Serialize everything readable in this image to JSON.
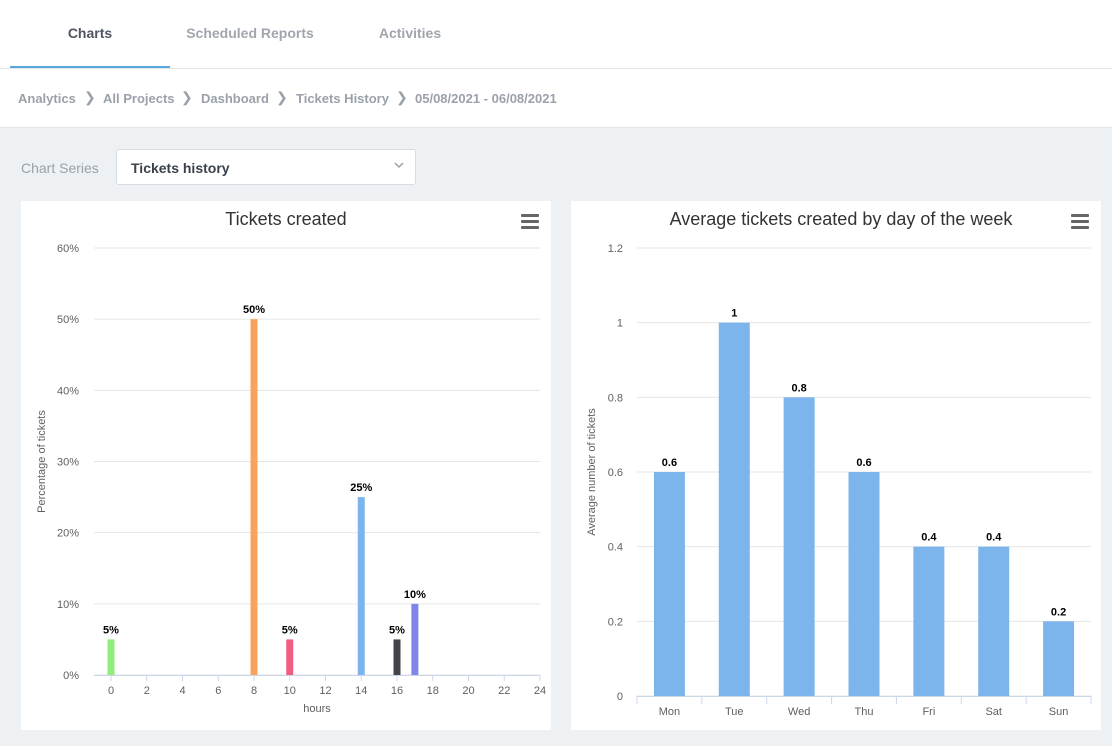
{
  "tabs": [
    {
      "label": "Charts",
      "active": true
    },
    {
      "label": "Scheduled Reports",
      "active": false
    },
    {
      "label": "Activities",
      "active": false
    }
  ],
  "breadcrumb": [
    "Analytics",
    "All Projects",
    "Dashboard",
    "Tickets History",
    "05/08/2021 - 06/08/2021"
  ],
  "series_selector": {
    "label": "Chart Series",
    "value": "Tickets history"
  },
  "colors": {
    "accent": "#5aa9dd",
    "bar_blue": "#7cb5ec"
  },
  "chart_data": [
    {
      "type": "bar",
      "title": "Tickets created",
      "xlabel": "hours",
      "ylabel": "Percentage of tickets",
      "x_ticks": [
        "0",
        "2",
        "4",
        "6",
        "8",
        "10",
        "12",
        "14",
        "16",
        "18",
        "20",
        "22",
        "24"
      ],
      "xlim": [
        0,
        24
      ],
      "y_ticks": [
        "0%",
        "10%",
        "20%",
        "30%",
        "40%",
        "50%",
        "60%"
      ],
      "ylim": [
        0,
        60
      ],
      "grid": true,
      "points": [
        {
          "x": 0,
          "y": 5,
          "label": "5%",
          "color": "#90ed7d"
        },
        {
          "x": 8,
          "y": 50,
          "label": "50%",
          "color": "#f7a35c"
        },
        {
          "x": 10,
          "y": 5,
          "label": "5%",
          "color": "#f15c80"
        },
        {
          "x": 14,
          "y": 25,
          "label": "25%",
          "color": "#7cb5ec"
        },
        {
          "x": 16,
          "y": 5,
          "label": "5%",
          "color": "#434348"
        },
        {
          "x": 17,
          "y": 10,
          "label": "10%",
          "color": "#8085e9"
        }
      ]
    },
    {
      "type": "bar",
      "title": "Average tickets created by day of the week",
      "xlabel": "",
      "ylabel": "Average number of tickets",
      "categories": [
        "Mon",
        "Tue",
        "Wed",
        "Thu",
        "Fri",
        "Sat",
        "Sun"
      ],
      "values": [
        0.6,
        1,
        0.8,
        0.6,
        0.4,
        0.4,
        0.2
      ],
      "value_labels": [
        "0.6",
        "1",
        "0.8",
        "0.6",
        "0.4",
        "0.4",
        "0.2"
      ],
      "y_ticks": [
        "0",
        "0.2",
        "0.4",
        "0.6",
        "0.8",
        "1",
        "1.2"
      ],
      "ylim": [
        0,
        1.2
      ],
      "grid": true,
      "color": "#7cb5ec"
    }
  ]
}
